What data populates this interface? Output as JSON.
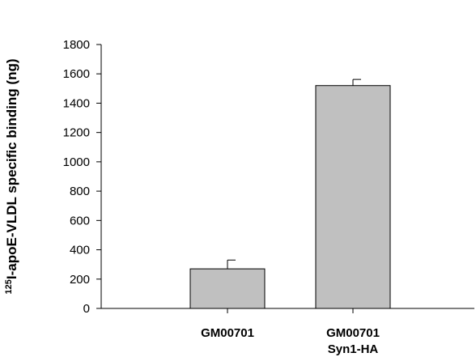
{
  "chart_data": {
    "type": "bar",
    "categories": [
      [
        "GM00701"
      ],
      [
        "GM00701",
        "Syn1-HA"
      ]
    ],
    "values": [
      270,
      1520
    ],
    "errors": [
      60,
      42
    ],
    "ylabel_sup": "125",
    "ylabel": "I-apoE-VLDL specific binding (ng)",
    "ylim": [
      0,
      1800
    ],
    "yticks": [
      0,
      200,
      400,
      600,
      800,
      1000,
      1200,
      1400,
      1600,
      1800
    ],
    "bar_color": "#c0c0c0",
    "grid": false
  }
}
